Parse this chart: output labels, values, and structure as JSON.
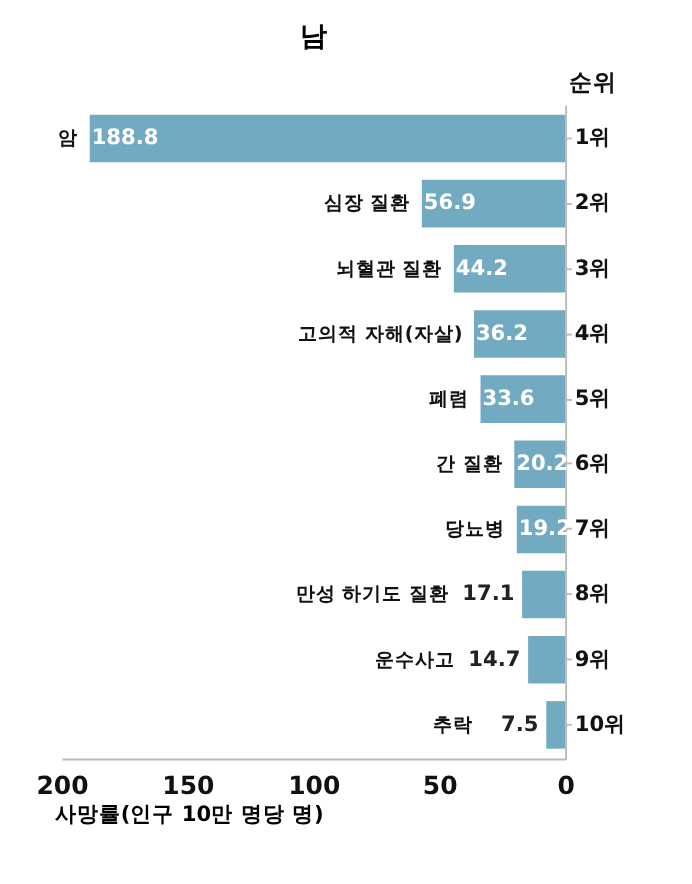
{
  "chart_data": {
    "type": "bar",
    "orientation": "horizontal",
    "title": "남",
    "xlabel": "사망률(인구 10만 명당 명)",
    "categories": [
      "암",
      "심장 질환",
      "뇌혈관 질환",
      "고의적 자해(자살)",
      "폐렴",
      "간 질환",
      "당뇨병",
      "만성 하기도 질환",
      "운수사고",
      "추락"
    ],
    "values": [
      188.8,
      56.9,
      44.2,
      36.2,
      33.6,
      20.2,
      19.2,
      17.1,
      14.7,
      7.5
    ],
    "color": "#72aac2",
    "data_labels": true,
    "xlim": [
      200,
      0
    ],
    "xticks": [
      200,
      150,
      100,
      50,
      0
    ],
    "grid": false,
    "tick_labels": "x",
    "annotations": [
      "순위",
      "1위",
      "2위",
      "3위",
      "4위",
      "5위",
      "6위",
      "7위",
      "8위",
      "9위",
      "10위"
    ]
  }
}
